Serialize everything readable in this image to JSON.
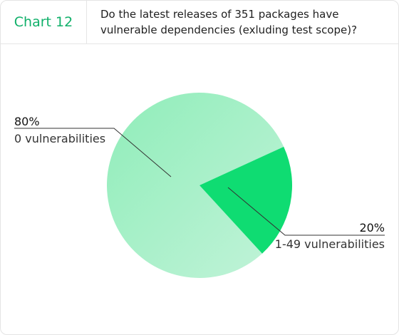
{
  "header": {
    "chart_label": "Chart 12",
    "question": "Do the latest releases of 351 packages have vulnerable dependencies (exluding test scope)?"
  },
  "colors": {
    "brand": "#10b06a",
    "slice_large": "#a8f0c8",
    "slice_small": "#0fdc72"
  },
  "chart_data": {
    "type": "pie",
    "title": "",
    "slices": [
      {
        "label": "0 vulnerabilities",
        "value": 80,
        "value_label": "80%"
      },
      {
        "label": "1-49 vulnerabilities",
        "value": 20,
        "value_label": "20%"
      }
    ]
  }
}
